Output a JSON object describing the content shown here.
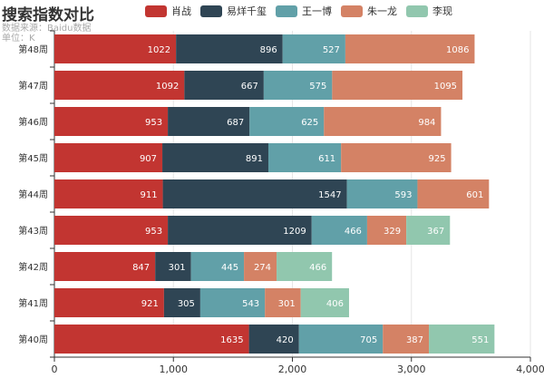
{
  "chart_data": {
    "type": "bar",
    "orientation": "horizontal",
    "stacked": true,
    "title": "搜索指数对比",
    "subtitle_lines": [
      "数据来源：Baidu数据",
      "单位：K"
    ],
    "categories": [
      "第48周",
      "第47周",
      "第46周",
      "第45周",
      "第44周",
      "第43周",
      "第42周",
      "第41周",
      "第40周"
    ],
    "series": [
      {
        "name": "肖战",
        "color": "#c23531",
        "values": [
          1022,
          1092,
          953,
          907,
          911,
          953,
          847,
          921,
          1635
        ]
      },
      {
        "name": "易烊千玺",
        "color": "#2f4554",
        "values": [
          896,
          667,
          687,
          891,
          1547,
          1209,
          301,
          305,
          420
        ]
      },
      {
        "name": "王一博",
        "color": "#61a0a8",
        "values": [
          527,
          575,
          625,
          611,
          593,
          466,
          445,
          543,
          705
        ]
      },
      {
        "name": "朱一龙",
        "color": "#d48265",
        "values": [
          1086,
          1095,
          984,
          925,
          601,
          329,
          274,
          301,
          387
        ]
      },
      {
        "name": "李现",
        "color": "#91c7ae",
        "values": [
          null,
          null,
          null,
          null,
          null,
          367,
          466,
          406,
          551
        ]
      }
    ],
    "xlim": [
      0,
      4000
    ],
    "x_ticks": [
      0,
      1000,
      2000,
      3000,
      4000
    ],
    "x_tick_labels": [
      "0",
      "1,000",
      "2,000",
      "3,000",
      "4,000"
    ],
    "grid": true,
    "legend_position": "top"
  }
}
